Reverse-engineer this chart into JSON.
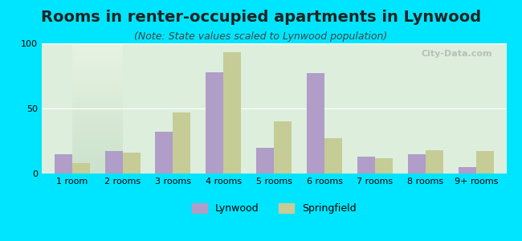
{
  "title": "Rooms in renter-occupied apartments in Lynwood",
  "subtitle": "(Note: State values scaled to Lynwood population)",
  "categories": [
    "1 room",
    "2 rooms",
    "3 rooms",
    "4 rooms",
    "5 rooms",
    "6 rooms",
    "7 rooms",
    "8 rooms",
    "9+ rooms"
  ],
  "lynwood": [
    15,
    17,
    32,
    78,
    20,
    77,
    13,
    15,
    5
  ],
  "springfield": [
    8,
    16,
    47,
    93,
    40,
    27,
    12,
    18,
    17
  ],
  "lynwood_color": "#b09dc8",
  "springfield_color": "#c5cc96",
  "background_outer": "#00e5ff",
  "background_inner_top": "#e8f5e0",
  "background_inner_bottom": "#d0ecd0",
  "ylim": [
    0,
    100
  ],
  "yticks": [
    0,
    50,
    100
  ],
  "bar_width": 0.35,
  "legend_lynwood": "Lynwood",
  "legend_springfield": "Springfield",
  "title_fontsize": 14,
  "subtitle_fontsize": 9,
  "axis_fontsize": 8,
  "watermark": "City-Data.com"
}
